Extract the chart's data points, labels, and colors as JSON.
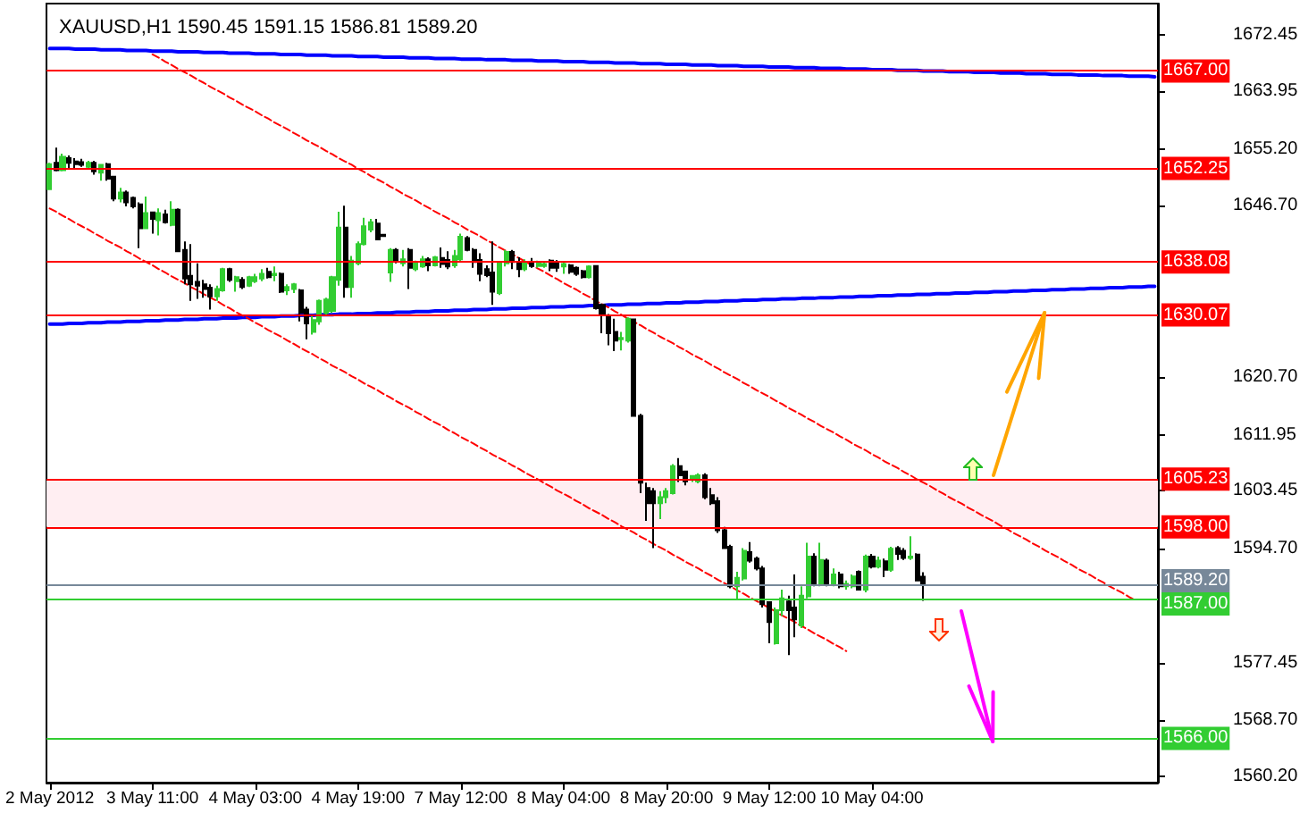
{
  "chart_data": {
    "type": "candlestick",
    "title": "XAUUSD,H1 1590.45 1591.15 1586.81 1589.20",
    "categories": [
      "2 May 2012",
      null,
      null,
      null,
      null,
      null,
      null,
      null,
      null,
      null,
      null,
      null,
      null,
      null,
      null,
      null,
      "3 May 11:00",
      null,
      null,
      null,
      null,
      null,
      null,
      null,
      null,
      null,
      null,
      null,
      null,
      null,
      null,
      null,
      "4 May 03:00",
      null,
      null,
      null,
      null,
      null,
      null,
      null,
      null,
      null,
      null,
      null,
      null,
      null,
      null,
      null,
      "4 May 19:00",
      null,
      null,
      null,
      null,
      null,
      null,
      null,
      null,
      null,
      null,
      null,
      null,
      null,
      null,
      null,
      "7 May 12:00",
      null,
      null,
      null,
      null,
      null,
      null,
      null,
      null,
      null,
      null,
      null,
      null,
      null,
      null,
      null,
      "8 May 04:00",
      null,
      null,
      null,
      null,
      null,
      null,
      null,
      null,
      null,
      null,
      null,
      null,
      null,
      null,
      null,
      "8 May 20:00",
      null,
      null,
      null,
      null,
      null,
      null,
      null,
      null,
      null,
      null,
      null,
      null,
      null,
      null,
      null,
      "9 May 12:00",
      null,
      null,
      null,
      null,
      null,
      null,
      null,
      null,
      null,
      null,
      null,
      null,
      null,
      null,
      null,
      "10 May 04:00",
      null,
      null,
      null,
      null,
      null,
      null,
      null,
      null,
      null,
      null,
      null,
      null,
      null,
      null,
      null,
      null,
      null,
      null,
      null,
      null,
      null,
      null,
      null,
      null,
      null,
      null,
      null,
      null,
      null,
      null,
      null,
      null,
      null,
      null,
      null,
      null,
      null,
      null,
      null,
      null,
      null,
      null,
      null,
      null
    ],
    "ohlc": [
      [
        1649.1,
        1653.1,
        1649.1,
        1652.9
      ],
      [
        1653.1,
        1655.4,
        1651.8,
        1652.0
      ],
      [
        1652.0,
        1654.5,
        1651.8,
        1654.0
      ],
      [
        1653.8,
        1654.2,
        1652.2,
        1653.1
      ],
      [
        1653.3,
        1653.8,
        1652.2,
        1652.9
      ],
      [
        1653.2,
        1653.7,
        1652.5,
        1652.8
      ],
      [
        1652.5,
        1653.4,
        1652.1,
        1653.1
      ],
      [
        1653.1,
        1653.4,
        1651.3,
        1651.8
      ],
      [
        1651.6,
        1652.8,
        1650.4,
        1652.8
      ],
      [
        1652.9,
        1653.1,
        1650.4,
        1650.7
      ],
      [
        1651.0,
        1651.1,
        1647.3,
        1647.7
      ],
      [
        1647.7,
        1649.3,
        1647.1,
        1648.6
      ],
      [
        1648.6,
        1648.9,
        1646.5,
        1647.1
      ],
      [
        1647.8,
        1648.0,
        1646.2,
        1646.5
      ],
      [
        1646.8,
        1647.1,
        1640.2,
        1643.2
      ],
      [
        1643.2,
        1648.0,
        1643.2,
        1645.5
      ],
      [
        1645.6,
        1645.7,
        1642.4,
        1644.6
      ],
      [
        1644.4,
        1646.2,
        1642.1,
        1645.5
      ],
      [
        1645.3,
        1646.0,
        1643.9,
        1644.1
      ],
      [
        1643.7,
        1647.3,
        1643.5,
        1646.0
      ],
      [
        1646.0,
        1646.2,
        1639.6,
        1639.7
      ],
      [
        1639.9,
        1641.2,
        1634.7,
        1635.6
      ],
      [
        1636.0,
        1640.8,
        1632.2,
        1634.7
      ],
      [
        1635.1,
        1637.9,
        1632.5,
        1634.5
      ],
      [
        1634.7,
        1635.4,
        1632.7,
        1634.0
      ],
      [
        1634.2,
        1634.7,
        1630.9,
        1632.9
      ],
      [
        1632.9,
        1634.5,
        1632.2,
        1634.0
      ],
      [
        1633.8,
        1637.2,
        1633.6,
        1637.0
      ],
      [
        1637.0,
        1637.2,
        1635.1,
        1635.4
      ],
      [
        1635.2,
        1636.0,
        1633.6,
        1635.8
      ],
      [
        1635.4,
        1635.8,
        1634.0,
        1634.3
      ],
      [
        1634.5,
        1636.0,
        1634.3,
        1635.8
      ],
      [
        1635.2,
        1636.3,
        1634.9,
        1635.8
      ],
      [
        1635.6,
        1637.0,
        1635.2,
        1636.3
      ],
      [
        1636.6,
        1637.2,
        1635.6,
        1635.8
      ],
      [
        1636.1,
        1637.4,
        1635.2,
        1636.3
      ],
      [
        1636.3,
        1636.5,
        1633.4,
        1633.6
      ],
      [
        1633.8,
        1634.7,
        1633.1,
        1634.3
      ],
      [
        1634.0,
        1634.9,
        1633.4,
        1634.7
      ],
      [
        1633.8,
        1634.0,
        1629.1,
        1630.4
      ],
      [
        1630.9,
        1631.3,
        1626.4,
        1628.8
      ],
      [
        1627.5,
        1630.0,
        1627.1,
        1629.3
      ],
      [
        1629.1,
        1632.4,
        1628.6,
        1632.2
      ],
      [
        1630.4,
        1632.7,
        1630.0,
        1632.4
      ],
      [
        1630.7,
        1636.0,
        1630.4,
        1635.8
      ],
      [
        1635.4,
        1645.7,
        1634.5,
        1643.3
      ],
      [
        1643.3,
        1646.6,
        1632.7,
        1634.3
      ],
      [
        1634.3,
        1639.0,
        1632.7,
        1638.3
      ],
      [
        1637.9,
        1641.2,
        1637.6,
        1640.8
      ],
      [
        1640.8,
        1644.8,
        1640.6,
        1643.5
      ],
      [
        1643.0,
        1644.6,
        1642.6,
        1644.1
      ],
      [
        1643.9,
        1644.6,
        1641.5,
        1641.5
      ],
      [
        1642.2,
        1642.3,
        1641.9,
        1642.0
      ],
      [
        1636.5,
        1640.2,
        1635.1,
        1639.9
      ],
      [
        1639.9,
        1640.2,
        1637.9,
        1638.3
      ],
      [
        1637.9,
        1639.9,
        1637.4,
        1638.5
      ],
      [
        1639.9,
        1640.2,
        1634.0,
        1637.2
      ],
      [
        1637.0,
        1638.3,
        1636.7,
        1637.9
      ],
      [
        1637.4,
        1639.0,
        1637.2,
        1638.5
      ],
      [
        1638.5,
        1638.8,
        1636.7,
        1637.6
      ],
      [
        1637.6,
        1639.0,
        1637.4,
        1638.8
      ],
      [
        1638.7,
        1640.3,
        1637.2,
        1637.8
      ],
      [
        1638.4,
        1639.7,
        1637.0,
        1637.4
      ],
      [
        1637.6,
        1639.9,
        1637.2,
        1639.0
      ],
      [
        1638.5,
        1642.4,
        1638.1,
        1641.9
      ],
      [
        1641.7,
        1642.0,
        1639.7,
        1639.9
      ],
      [
        1639.9,
        1640.2,
        1637.2,
        1638.1
      ],
      [
        1638.4,
        1639.4,
        1635.2,
        1636.3
      ],
      [
        1637.0,
        1637.6,
        1635.8,
        1636.1
      ],
      [
        1636.5,
        1641.2,
        1631.6,
        1633.6
      ],
      [
        1633.4,
        1638.1,
        1633.1,
        1637.9
      ],
      [
        1637.9,
        1639.9,
        1637.4,
        1639.6
      ],
      [
        1639.6,
        1639.9,
        1637.0,
        1638.1
      ],
      [
        1638.1,
        1638.8,
        1635.8,
        1637.0
      ],
      [
        1637.0,
        1638.5,
        1636.7,
        1638.1
      ],
      [
        1638.1,
        1638.7,
        1637.2,
        1637.5
      ],
      [
        1637.5,
        1638.3,
        1637.2,
        1638.1
      ],
      [
        1637.5,
        1638.1,
        1637.2,
        1637.8
      ],
      [
        1638.3,
        1638.5,
        1636.7,
        1637.2
      ],
      [
        1638.1,
        1638.4,
        1636.6,
        1637.2
      ],
      [
        1637.4,
        1638.1,
        1636.3,
        1637.8
      ],
      [
        1637.6,
        1637.8,
        1636.3,
        1636.6
      ],
      [
        1637.2,
        1637.4,
        1636.0,
        1636.3
      ],
      [
        1636.7,
        1636.9,
        1635.6,
        1635.8
      ],
      [
        1635.8,
        1637.6,
        1635.6,
        1637.4
      ],
      [
        1637.5,
        1637.6,
        1630.9,
        1631.1
      ],
      [
        1631.6,
        1631.8,
        1627.3,
        1630.2
      ],
      [
        1629.8,
        1630.2,
        1625.5,
        1627.3
      ],
      [
        1627.5,
        1629.5,
        1624.6,
        1626.2
      ],
      [
        1626.4,
        1627.5,
        1624.7,
        1626.6
      ],
      [
        1626.2,
        1629.7,
        1625.9,
        1629.5
      ],
      [
        1629.4,
        1629.5,
        1614.8,
        1614.8
      ],
      [
        1614.8,
        1615.1,
        1603.1,
        1604.7
      ],
      [
        1603.9,
        1604.7,
        1598.9,
        1601.6
      ],
      [
        1603.4,
        1603.9,
        1594.8,
        1601.6
      ],
      [
        1601.6,
        1603.4,
        1599.2,
        1602.5
      ],
      [
        1602.5,
        1603.9,
        1601.6,
        1603.4
      ],
      [
        1603.1,
        1607.5,
        1602.9,
        1607.2
      ],
      [
        1607.2,
        1608.4,
        1604.8,
        1605.8
      ],
      [
        1606.4,
        1606.5,
        1604.3,
        1604.9
      ],
      [
        1605.4,
        1605.8,
        1604.8,
        1605.7
      ],
      [
        1604.9,
        1606.1,
        1604.6,
        1605.8
      ],
      [
        1605.8,
        1606.1,
        1602.2,
        1602.5
      ],
      [
        1602.8,
        1603.9,
        1601.3,
        1601.6
      ],
      [
        1601.9,
        1602.5,
        1597.1,
        1597.5
      ],
      [
        1597.5,
        1598.0,
        1594.7,
        1594.8
      ],
      [
        1595.0,
        1595.3,
        1588.7,
        1589.0
      ],
      [
        1589.0,
        1591.2,
        1586.9,
        1590.3
      ],
      [
        1590.2,
        1594.8,
        1589.9,
        1594.4
      ],
      [
        1594.2,
        1595.7,
        1592.6,
        1592.9
      ],
      [
        1593.2,
        1593.5,
        1591.4,
        1591.7
      ],
      [
        1591.7,
        1592.1,
        1585.8,
        1586.3
      ],
      [
        1586.6,
        1586.7,
        1580.4,
        1583.6
      ],
      [
        1580.4,
        1585.8,
        1580.2,
        1585.4
      ],
      [
        1585.4,
        1588.5,
        1584.5,
        1587.2
      ],
      [
        1586.7,
        1587.6,
        1578.6,
        1585.4
      ],
      [
        1585.8,
        1590.8,
        1581.3,
        1584.0
      ],
      [
        1583.1,
        1589.0,
        1582.7,
        1587.6
      ],
      [
        1587.5,
        1595.6,
        1587.2,
        1593.5
      ],
      [
        1593.5,
        1594.0,
        1589.0,
        1589.4
      ],
      [
        1589.4,
        1595.6,
        1589.0,
        1593.0
      ],
      [
        1592.9,
        1593.2,
        1589.0,
        1589.4
      ],
      [
        1589.4,
        1591.7,
        1589.0,
        1590.8
      ],
      [
        1590.8,
        1591.2,
        1588.7,
        1589.0
      ],
      [
        1589.0,
        1589.9,
        1588.5,
        1589.4
      ],
      [
        1589.0,
        1590.8,
        1588.7,
        1590.5
      ],
      [
        1591.2,
        1591.4,
        1588.4,
        1588.5
      ],
      [
        1588.5,
        1593.8,
        1588.1,
        1593.5
      ],
      [
        1593.5,
        1593.9,
        1591.7,
        1592.0
      ],
      [
        1592.0,
        1593.5,
        1591.7,
        1592.9
      ],
      [
        1592.8,
        1593.2,
        1590.4,
        1591.5
      ],
      [
        1591.5,
        1595.0,
        1591.2,
        1594.7
      ],
      [
        1594.8,
        1595.1,
        1593.0,
        1593.9
      ],
      [
        1594.4,
        1594.8,
        1593.0,
        1593.3
      ],
      [
        1593.3,
        1596.6,
        1593.0,
        1593.5
      ],
      [
        1593.8,
        1594.0,
        1589.9,
        1589.9
      ],
      [
        1590.45,
        1591.15,
        1586.81,
        1589.2
      ],
      null,
      null,
      null,
      null,
      null,
      null,
      null,
      null,
      null,
      null,
      null,
      null,
      null,
      null,
      null,
      null,
      null,
      null,
      null,
      null,
      null,
      null,
      null,
      null,
      null,
      null,
      null,
      null,
      null,
      null,
      null,
      null,
      null,
      null,
      null,
      null
    ],
    "colors": [
      "#32cd32",
      "#000000",
      "#32cd32",
      "#000000",
      "#000000",
      "#000000",
      "#32cd32",
      "#000000",
      "#32cd32",
      "#000000",
      "#000000",
      "#32cd32",
      "#000000",
      "#000000",
      "#000000",
      "#32cd32",
      "#000000",
      "#32cd32",
      "#000000",
      "#32cd32",
      "#000000",
      "#000000",
      "#000000",
      "#000000",
      "#000000",
      "#000000",
      "#32cd32",
      "#32cd32",
      "#000000",
      "#32cd32",
      "#000000",
      "#32cd32",
      "#32cd32",
      "#32cd32",
      "#000000",
      "#32cd32",
      "#000000",
      "#32cd32",
      "#32cd32",
      "#000000",
      "#000000",
      "#32cd32",
      "#32cd32",
      "#32cd32",
      "#32cd32",
      "#32cd32",
      "#000000",
      "#32cd32",
      "#32cd32",
      "#32cd32",
      "#32cd32",
      "#000000",
      "#000000",
      "#32cd32",
      "#000000",
      "#32cd32",
      "#000000",
      "#32cd32",
      "#32cd32",
      "#000000",
      "#32cd32",
      "#000000",
      "#000000",
      "#32cd32",
      "#32cd32",
      "#000000",
      "#000000",
      "#000000",
      "#000000",
      "#000000",
      "#32cd32",
      "#32cd32",
      "#000000",
      "#000000",
      "#32cd32",
      "#000000",
      "#32cd32",
      "#32cd32",
      "#000000",
      "#000000",
      "#32cd32",
      "#000000",
      "#000000",
      "#000000",
      "#32cd32",
      "#000000",
      "#000000",
      "#000000",
      "#000000",
      "#32cd32",
      "#32cd32",
      "#000000",
      "#000000",
      "#000000",
      "#000000",
      "#32cd32",
      "#32cd32",
      "#32cd32",
      "#000000",
      "#000000",
      "#32cd32",
      "#32cd32",
      "#000000",
      "#000000",
      "#000000",
      "#000000",
      "#000000",
      "#32cd32",
      "#32cd32",
      "#000000",
      "#000000",
      "#000000",
      "#000000",
      "#32cd32",
      "#32cd32",
      "#000000",
      "#000000",
      "#32cd32",
      "#32cd32",
      "#000000",
      "#32cd32",
      "#000000",
      "#32cd32",
      "#000000",
      "#32cd32",
      "#32cd32",
      "#000000",
      "#32cd32",
      "#000000",
      "#32cd32",
      "#000000",
      "#32cd32",
      "#000000",
      "#000000",
      "#32cd32",
      "#000000",
      "#000000",
      null,
      null,
      null,
      null,
      null,
      null,
      null,
      null,
      null,
      null,
      null,
      null,
      null,
      null,
      null,
      null,
      null,
      null,
      null,
      null,
      null,
      null,
      null,
      null,
      null,
      null,
      null,
      null,
      null,
      null,
      null,
      null,
      null,
      null,
      null,
      null
    ],
    "series": [
      {
        "type": "line",
        "color": "#0000ff",
        "line_style": "solid",
        "values": [
          1670.4,
          1670.4,
          1670.4,
          1670.4,
          1670.3,
          1670.3,
          1670.3,
          1670.3,
          1670.2,
          1670.2,
          1670.2,
          1670.2,
          1670.1,
          1670.1,
          1670.1,
          1670.1,
          1670.0,
          1670.0,
          1670.0,
          1670.0,
          1669.9,
          1669.9,
          1669.9,
          1669.9,
          1669.8,
          1669.8,
          1669.8,
          1669.8,
          1669.7,
          1669.7,
          1669.7,
          1669.7,
          1669.6,
          1669.6,
          1669.6,
          1669.6,
          1669.5,
          1669.5,
          1669.5,
          1669.5,
          1669.4,
          1669.4,
          1669.4,
          1669.4,
          1669.3,
          1669.3,
          1669.3,
          1669.3,
          1669.2,
          1669.2,
          1669.2,
          1669.2,
          1669.1,
          1669.1,
          1669.1,
          1669.1,
          1669.0,
          1669.0,
          1669.0,
          1669.0,
          1668.9,
          1668.9,
          1668.9,
          1668.9,
          1668.8,
          1668.8,
          1668.8,
          1668.8,
          1668.7,
          1668.7,
          1668.7,
          1668.7,
          1668.6,
          1668.6,
          1668.6,
          1668.6,
          1668.5,
          1668.5,
          1668.5,
          1668.5,
          1668.4,
          1668.4,
          1668.4,
          1668.4,
          1668.3,
          1668.3,
          1668.3,
          1668.3,
          1668.2,
          1668.2,
          1668.2,
          1668.2,
          1668.1,
          1668.1,
          1668.1,
          1668.1,
          1668.0,
          1668.0,
          1668.0,
          1668.0,
          1667.9,
          1667.9,
          1667.9,
          1667.9,
          1667.8,
          1667.8,
          1667.8,
          1667.8,
          1667.7,
          1667.7,
          1667.7,
          1667.7,
          1667.6,
          1667.6,
          1667.6,
          1667.6,
          1667.5,
          1667.5,
          1667.5,
          1667.5,
          1667.4,
          1667.4,
          1667.4,
          1667.4,
          1667.3,
          1667.3,
          1667.3,
          1667.3,
          1667.2,
          1667.2,
          1667.2,
          1667.2,
          1667.1,
          1667.1,
          1667.1,
          1667.1,
          1667.0,
          1667.0,
          1667.0,
          1667.0,
          1666.9,
          1666.9,
          1666.9,
          1666.9,
          1666.8,
          1666.8,
          1666.8,
          1666.8,
          1666.7,
          1666.7,
          1666.7,
          1666.7,
          1666.6,
          1666.6,
          1666.6,
          1666.6,
          1666.5,
          1666.5,
          1666.5,
          1666.5,
          1666.4,
          1666.4,
          1666.4,
          1666.4,
          1666.3,
          1666.3,
          1666.3,
          1666.3,
          1666.2,
          1666.2,
          1666.2,
          1666.2,
          1666.1
        ]
      },
      {
        "type": "line",
        "color": "#0000ff",
        "line_style": "solid",
        "values": [
          1628.7,
          1628.7,
          1628.7,
          1628.8,
          1628.8,
          1628.8,
          1628.9,
          1628.9,
          1628.9,
          1629.0,
          1629.0,
          1629.0,
          1629.1,
          1629.1,
          1629.1,
          1629.2,
          1629.2,
          1629.2,
          1629.3,
          1629.3,
          1629.3,
          1629.4,
          1629.4,
          1629.4,
          1629.5,
          1629.5,
          1629.5,
          1629.6,
          1629.6,
          1629.6,
          1629.7,
          1629.7,
          1629.7,
          1629.8,
          1629.8,
          1629.8,
          1629.9,
          1629.9,
          1629.9,
          1630.0,
          1630.0,
          1630.0,
          1630.1,
          1630.1,
          1630.1,
          1630.2,
          1630.2,
          1630.2,
          1630.3,
          1630.3,
          1630.3,
          1630.4,
          1630.4,
          1630.4,
          1630.5,
          1630.5,
          1630.5,
          1630.6,
          1630.6,
          1630.6,
          1630.7,
          1630.7,
          1630.7,
          1630.8,
          1630.8,
          1630.8,
          1630.9,
          1630.9,
          1630.9,
          1631.0,
          1631.0,
          1631.0,
          1631.1,
          1631.1,
          1631.1,
          1631.2,
          1631.2,
          1631.2,
          1631.3,
          1631.3,
          1631.3,
          1631.4,
          1631.4,
          1631.4,
          1631.5,
          1631.5,
          1631.5,
          1631.6,
          1631.6,
          1631.6,
          1631.7,
          1631.7,
          1631.7,
          1631.8,
          1631.8,
          1631.8,
          1631.9,
          1631.9,
          1631.9,
          1632.0,
          1632.0,
          1632.0,
          1632.1,
          1632.1,
          1632.1,
          1632.2,
          1632.2,
          1632.2,
          1632.3,
          1632.3,
          1632.3,
          1632.4,
          1632.4,
          1632.4,
          1632.5,
          1632.5,
          1632.5,
          1632.6,
          1632.6,
          1632.6,
          1632.7,
          1632.7,
          1632.7,
          1632.8,
          1632.8,
          1632.8,
          1632.9,
          1632.9,
          1632.9,
          1633.0,
          1633.0,
          1633.0,
          1633.1,
          1633.1,
          1633.1,
          1633.2,
          1633.2,
          1633.2,
          1633.3,
          1633.3,
          1633.3,
          1633.4,
          1633.4,
          1633.4,
          1633.5,
          1633.5,
          1633.5,
          1633.6,
          1633.6,
          1633.6,
          1633.7,
          1633.7,
          1633.7,
          1633.8,
          1633.8,
          1633.8,
          1633.9,
          1633.9,
          1633.9,
          1634.0,
          1634.0,
          1634.0,
          1634.1,
          1634.1,
          1634.1,
          1634.2,
          1634.2,
          1634.2,
          1634.3,
          1634.3,
          1634.3,
          1634.4,
          1634.4
        ]
      },
      {
        "type": "line",
        "color": "#ff0000",
        "line_style": "dashed",
        "values": [
          null,
          null,
          null,
          null,
          null,
          null,
          null,
          null,
          null,
          null,
          null,
          null,
          null,
          null,
          null,
          null,
          1669.5,
          1669.0,
          1668.4,
          1667.9,
          1667.3,
          1666.8,
          1666.3,
          1665.7,
          1665.2,
          1664.6,
          1664.1,
          1663.6,
          1663.0,
          1662.5,
          1661.9,
          1661.4,
          1660.9,
          1660.3,
          1659.8,
          1659.2,
          1658.7,
          1658.2,
          1657.6,
          1657.1,
          1656.5,
          1656.0,
          1655.5,
          1654.9,
          1654.4,
          1653.8,
          1653.3,
          1652.8,
          1652.2,
          1651.7,
          1651.1,
          1650.6,
          1650.1,
          1649.5,
          1649.0,
          1648.4,
          1647.9,
          1647.4,
          1646.8,
          1646.3,
          1645.7,
          1645.2,
          1644.7,
          1644.1,
          1643.6,
          1643.0,
          1642.5,
          1642.0,
          1641.4,
          1640.9,
          1640.3,
          1639.8,
          1639.3,
          1638.7,
          1638.2,
          1637.6,
          1637.1,
          1636.6,
          1636.0,
          1635.5,
          1634.9,
          1634.4,
          1633.9,
          1633.3,
          1632.8,
          1632.2,
          1631.7,
          1631.2,
          1630.6,
          1630.1,
          1629.5,
          1629.0,
          1628.5,
          1627.9,
          1627.4,
          1626.8,
          1626.3,
          1625.8,
          1625.2,
          1624.7,
          1624.1,
          1623.6,
          1623.1,
          1622.5,
          1622.0,
          1621.4,
          1620.9,
          1620.4,
          1619.8,
          1619.3,
          1618.7,
          1618.2,
          1617.7,
          1617.1,
          1616.6,
          1616.0,
          1615.5,
          1615.0,
          1614.4,
          1613.9,
          1613.3,
          1612.8,
          1612.3,
          1611.7,
          1611.2,
          1610.6,
          1610.1,
          1609.6,
          1609.0,
          1608.5,
          1607.9,
          1607.4,
          1606.9,
          1606.3,
          1605.8,
          1605.2,
          1604.7,
          1604.2,
          1603.6,
          1603.1,
          1602.5,
          1602.0,
          1601.5,
          1600.9,
          1600.4,
          1599.8,
          1599.3,
          1598.8,
          1598.2,
          1597.7,
          1597.1,
          1596.6,
          1596.1,
          1595.5,
          1595.0,
          1594.4,
          1593.9,
          1593.4,
          1592.8,
          1592.3,
          1591.7,
          1591.2,
          1590.7,
          1590.1,
          1589.6,
          1589.0,
          1588.5,
          1588.0,
          1587.4,
          1586.9,
          null,
          null,
          null
        ]
      },
      {
        "type": "line",
        "color": "#ff0000",
        "line_style": "dashed",
        "values": [
          1646.2,
          1645.7,
          1645.1,
          1644.6,
          1644.0,
          1643.5,
          1643.0,
          1642.4,
          1641.9,
          1641.3,
          1640.8,
          1640.3,
          1639.7,
          1639.2,
          1638.6,
          1638.1,
          1637.6,
          1637.0,
          1636.5,
          1635.9,
          1635.4,
          1634.9,
          1634.3,
          1633.8,
          1633.2,
          1632.7,
          1632.2,
          1631.6,
          1631.1,
          1630.5,
          1630.0,
          1629.5,
          1628.9,
          1628.4,
          1627.8,
          1627.3,
          1626.8,
          1626.2,
          1625.7,
          1625.1,
          1624.6,
          1624.1,
          1623.5,
          1623.0,
          1622.4,
          1621.9,
          1621.4,
          1620.8,
          1620.3,
          1619.7,
          1619.2,
          1618.7,
          1618.1,
          1617.6,
          1617.0,
          1616.5,
          1616.0,
          1615.4,
          1614.9,
          1614.3,
          1613.8,
          1613.3,
          1612.7,
          1612.2,
          1611.6,
          1611.1,
          1610.6,
          1610.0,
          1609.5,
          1608.9,
          1608.4,
          1607.9,
          1607.3,
          1606.8,
          1606.2,
          1605.7,
          1605.2,
          1604.6,
          1604.1,
          1603.5,
          1603.0,
          1602.5,
          1601.9,
          1601.4,
          1600.8,
          1600.3,
          1599.8,
          1599.2,
          1598.7,
          1598.1,
          1597.6,
          1597.1,
          1596.5,
          1596.0,
          1595.4,
          1594.9,
          1594.4,
          1593.8,
          1593.3,
          1592.7,
          1592.2,
          1591.7,
          1591.1,
          1590.6,
          1590.0,
          1589.5,
          1589.0,
          1588.4,
          1587.9,
          1587.3,
          1586.8,
          1586.3,
          1585.7,
          1585.2,
          1584.6,
          1584.1,
          1583.6,
          1583.0,
          1582.5,
          1581.9,
          1581.4,
          1580.9,
          1580.3,
          1579.8,
          1579.2,
          null,
          null,
          null,
          null,
          null,
          null,
          null,
          null,
          null,
          null,
          null,
          null,
          null,
          null,
          null,
          null,
          null,
          null,
          null,
          null,
          null,
          null,
          null,
          null,
          null,
          null,
          null,
          null,
          null,
          null,
          null,
          null,
          null,
          null,
          null,
          null,
          null,
          null,
          null,
          null,
          null,
          null,
          null,
          null,
          null,
          null,
          null,
          null
        ]
      }
    ],
    "ylim": [
      1559.3,
      1677.2
    ],
    "yticks": [
      {
        "value": 1560.2,
        "label": "1560.20"
      },
      {
        "value": 1568.7,
        "label": "1568.70"
      },
      1577.45,
      {
        "value": 1594.7,
        "label": "1594.70"
      },
      1603.45,
      1611.95,
      {
        "value": 1620.7,
        "label": "1620.70"
      },
      {
        "value": 1646.7,
        "label": "1646.70"
      },
      {
        "value": 1655.2,
        "label": "1655.20"
      },
      1663.95,
      1672.45
    ],
    "ref_lines": [
      {
        "axis": "y",
        "value": 1667,
        "label": "1667.00",
        "color": "#ff0000"
      },
      {
        "axis": "y",
        "value": 1652.25,
        "label": "1652.25",
        "color": "#ff0000"
      },
      {
        "axis": "y",
        "value": 1638.08,
        "label": "1638.08",
        "color": "#ff0000"
      },
      {
        "axis": "y",
        "value": 1630.07,
        "label": "1630.07",
        "color": "#ff0000"
      },
      {
        "axis": "y",
        "value": 1605.23,
        "label": "1605.23",
        "color": "#ff0000"
      },
      {
        "axis": "y",
        "value": 1598,
        "label": "1598.00",
        "color": "#ff0000"
      },
      {
        "axis": "y",
        "value": 1589.2,
        "label": "1589.20",
        "color": "#778899"
      },
      {
        "axis": "y",
        "value": 1587,
        "label": "1587.00",
        "color": "#32cd32"
      },
      {
        "axis": "y",
        "value": 1566,
        "label": "1566.00",
        "color": "#32cd32"
      }
    ],
    "bands": [
      {
        "axis": "y",
        "from": 1598,
        "to": 1605.23,
        "color": "#ffeef2"
      }
    ]
  }
}
